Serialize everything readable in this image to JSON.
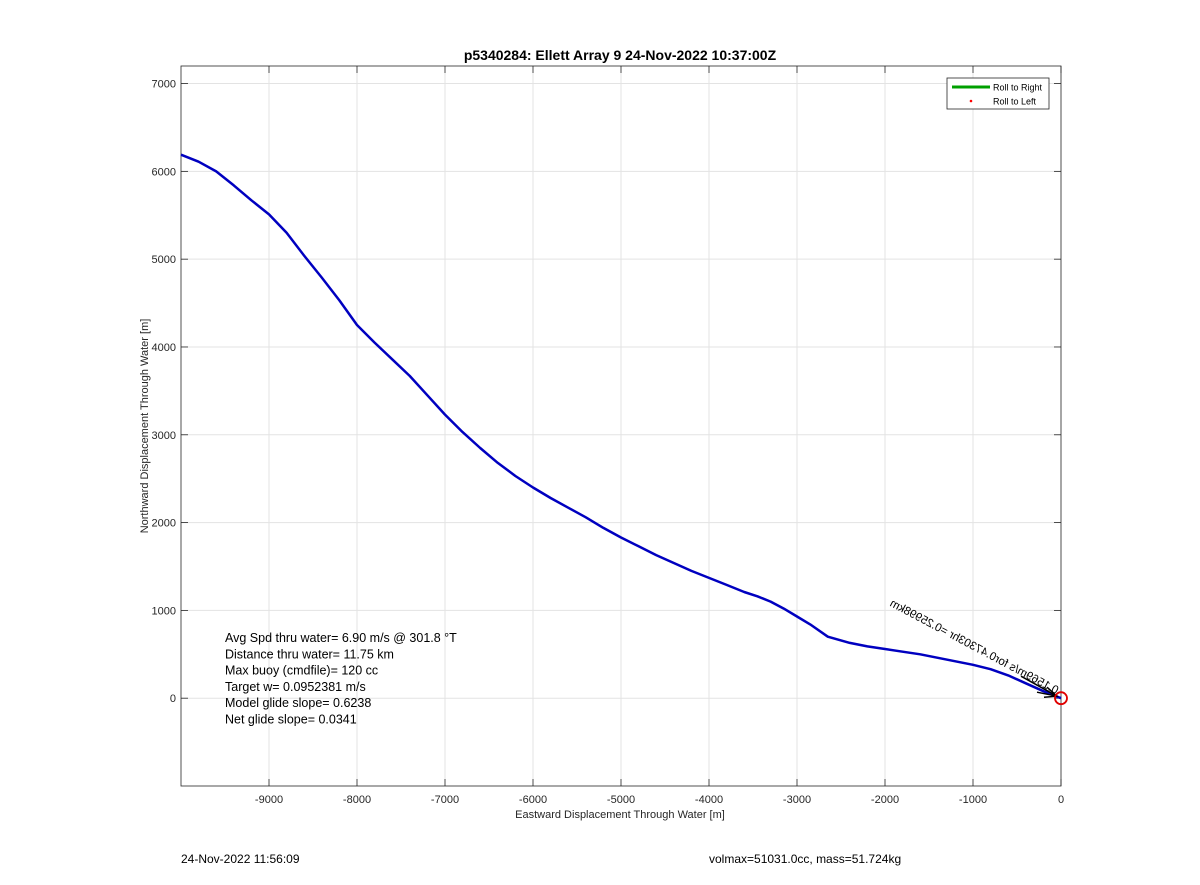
{
  "chart_data": {
    "type": "line",
    "title": "p5340284: Ellett Array 9 24-Nov-2022 10:37:00Z",
    "xlabel": "Eastward Displacement Through Water [m]",
    "ylabel": "Northward Displacement Through Water [m]",
    "xlim": [
      -10000,
      0
    ],
    "ylim": [
      -1000,
      7200
    ],
    "xticks": [
      -9000,
      -8000,
      -7000,
      -6000,
      -5000,
      -4000,
      -3000,
      -2000,
      -1000,
      0
    ],
    "yticks": [
      0,
      1000,
      2000,
      3000,
      4000,
      5000,
      6000,
      7000
    ],
    "xtick_labels": [
      "-9000",
      "-8000",
      "-7000",
      "-6000",
      "-5000",
      "-4000",
      "-3000",
      "-2000",
      "-1000",
      "0"
    ],
    "ytick_labels": [
      "0",
      "1000",
      "2000",
      "3000",
      "4000",
      "5000",
      "6000",
      "7000"
    ],
    "grid": true,
    "legend_position": "top-right",
    "legend": [
      {
        "label": "Roll to Right",
        "color": "#00a000",
        "style": "line"
      },
      {
        "label": "Roll to Left",
        "color": "#ff0000",
        "style": "dot"
      }
    ],
    "series": [
      {
        "color": "#0000c0",
        "x": [
          -10000,
          -9800,
          -9600,
          -9400,
          -9200,
          -9000,
          -8800,
          -8600,
          -8400,
          -8200,
          -8000,
          -7800,
          -7600,
          -7400,
          -7200,
          -7000,
          -6800,
          -6600,
          -6400,
          -6200,
          -6000,
          -5800,
          -5600,
          -5400,
          -5200,
          -5000,
          -4800,
          -4600,
          -4400,
          -4200,
          -4000,
          -3800,
          -3600,
          -3450,
          -3300,
          -3150,
          -3000,
          -2850,
          -2650,
          -2400,
          -2200,
          -2000,
          -1800,
          -1600,
          -1400,
          -1200,
          -1000,
          -800,
          -600,
          -400,
          -200,
          -100,
          0
        ],
        "y": [
          6190,
          6110,
          6000,
          5840,
          5670,
          5510,
          5300,
          5040,
          4790,
          4530,
          4250,
          4050,
          3860,
          3670,
          3450,
          3230,
          3030,
          2850,
          2680,
          2530,
          2400,
          2280,
          2170,
          2060,
          1940,
          1830,
          1730,
          1630,
          1540,
          1450,
          1370,
          1290,
          1210,
          1160,
          1100,
          1020,
          930,
          840,
          700,
          630,
          590,
          560,
          530,
          500,
          460,
          420,
          380,
          330,
          260,
          170,
          80,
          40,
          0
        ]
      }
    ],
    "annotations": {
      "stats": [
        "Avg Spd thru water=  6.90 m/s @ 301.8 °T",
        "Distance thru water= 11.75 km",
        "Max buoy (cmdfile)= 120 cc",
        "Target w= 0.0952381 m/s",
        "Model glide slope= 0.6238",
        "Net glide slope= 0.0341"
      ],
      "arrow_label": "0.1569m/s for0.47303hr =0.25998km",
      "end_marker": {
        "x": 0,
        "y": 0,
        "color": "#e00000"
      },
      "arrow_color": "#000000"
    }
  },
  "footer": {
    "left": "24-Nov-2022 11:56:09",
    "right": "volmax=51031.0cc, mass=51.724kg"
  }
}
